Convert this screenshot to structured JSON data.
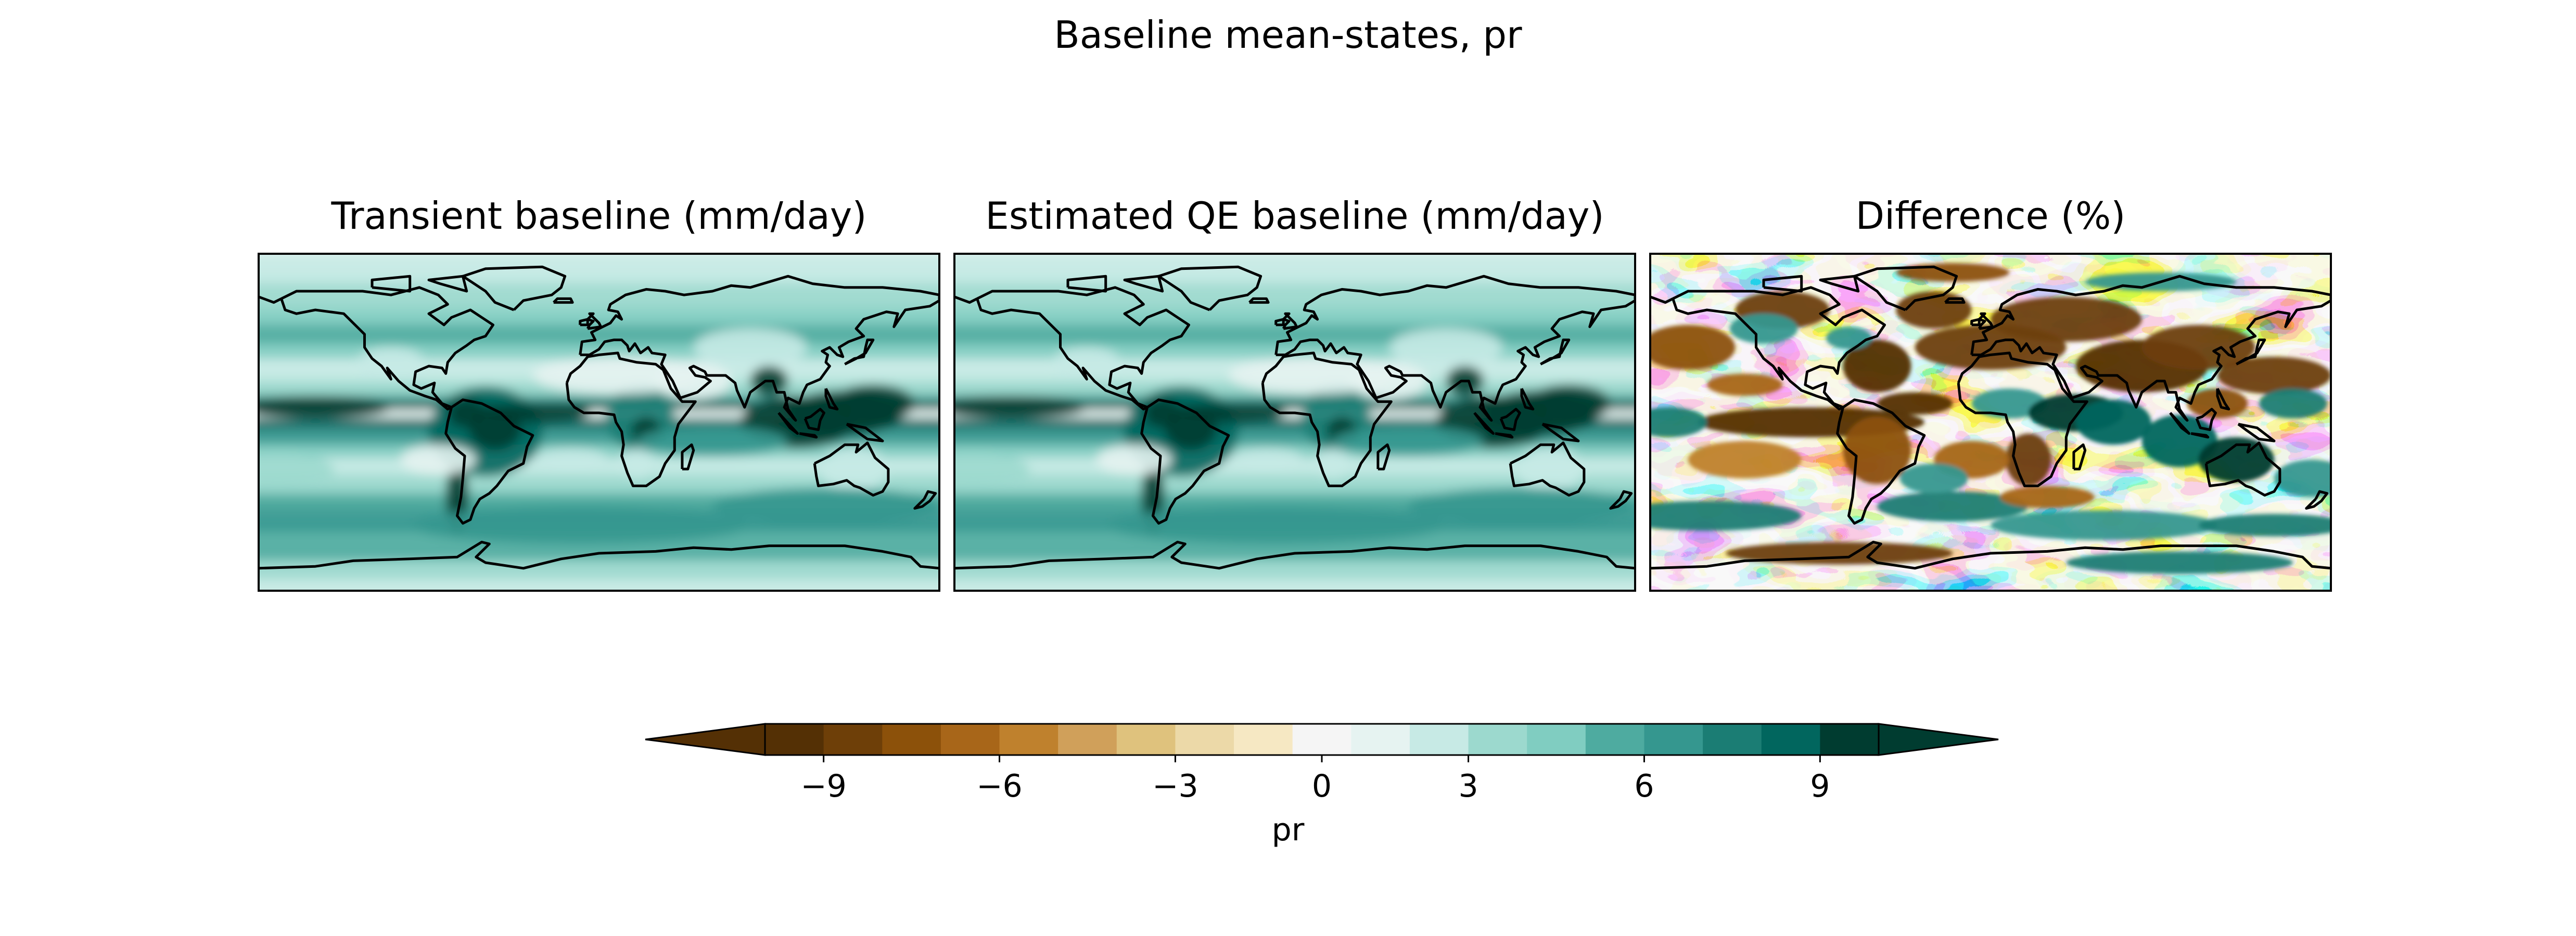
{
  "figure": {
    "title": "Baseline mean-states, pr"
  },
  "panels": [
    {
      "title": "Transient baseline (mm/day)",
      "field": "transient"
    },
    {
      "title": "Estimated QE baseline (mm/day)",
      "field": "qe"
    },
    {
      "title": "Difference (%)",
      "field": "difference"
    }
  ],
  "colorbar": {
    "label": "pr",
    "levels": [
      -10,
      -9,
      -8,
      -7,
      -6,
      -5,
      -4,
      -3,
      -2,
      -1,
      1,
      2,
      3,
      4,
      5,
      6,
      7,
      8,
      9,
      10
    ],
    "extend": "both",
    "ticks": [
      {
        "value": -9,
        "label": "−9"
      },
      {
        "value": -6,
        "label": "−6"
      },
      {
        "value": -3,
        "label": "−3"
      },
      {
        "value": 0,
        "label": "0"
      },
      {
        "value": 3,
        "label": "3"
      },
      {
        "value": 6,
        "label": "6"
      },
      {
        "value": 9,
        "label": "9"
      }
    ],
    "colors": [
      "#543005",
      "#6e3f08",
      "#8c510a",
      "#a86619",
      "#bf812d",
      "#d0a05a",
      "#dfc27d",
      "#ecd9a8",
      "#f6e8c3",
      "#f5f5f5",
      "#e6f3f1",
      "#c7eae5",
      "#9cd9ce",
      "#80cdc1",
      "#4eaba0",
      "#35978f",
      "#1b7d74",
      "#01665e",
      "#003c30"
    ]
  },
  "colormap": "BrBG"
}
